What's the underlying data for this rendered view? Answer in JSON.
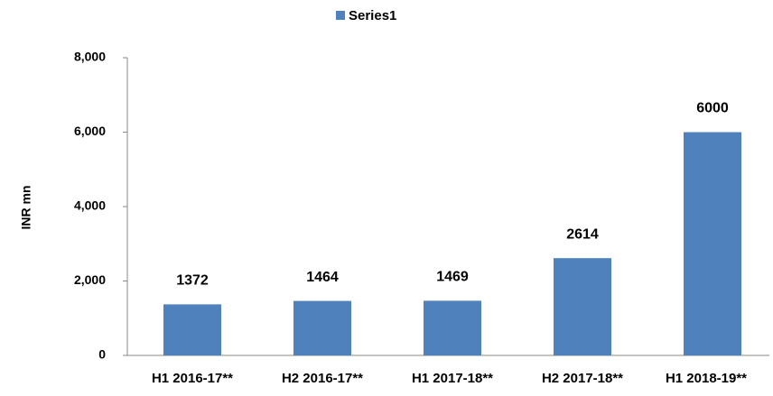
{
  "chart_data": {
    "type": "bar",
    "legend": "Series1",
    "y_label": "INR mn",
    "categories": [
      "H1 2016-17**",
      "H2 2016-17**",
      "H1 2017-18**",
      "H2 2017-18**",
      "H1 2018-19**"
    ],
    "series": [
      {
        "name": "Series1",
        "color": "#4f81bd",
        "values": [
          1372,
          1464,
          1469,
          2614,
          6000
        ]
      }
    ],
    "ylim": [
      0,
      8000
    ],
    "yticks": [
      0,
      {
        "value": 2000,
        "label": "2,000"
      },
      {
        "value": 4000,
        "label": "4,000"
      },
      {
        "value": 6000,
        "label": "6,000"
      },
      {
        "value": 8000,
        "label": "8,000"
      }
    ],
    "grid": false,
    "legend_position": "top"
  }
}
